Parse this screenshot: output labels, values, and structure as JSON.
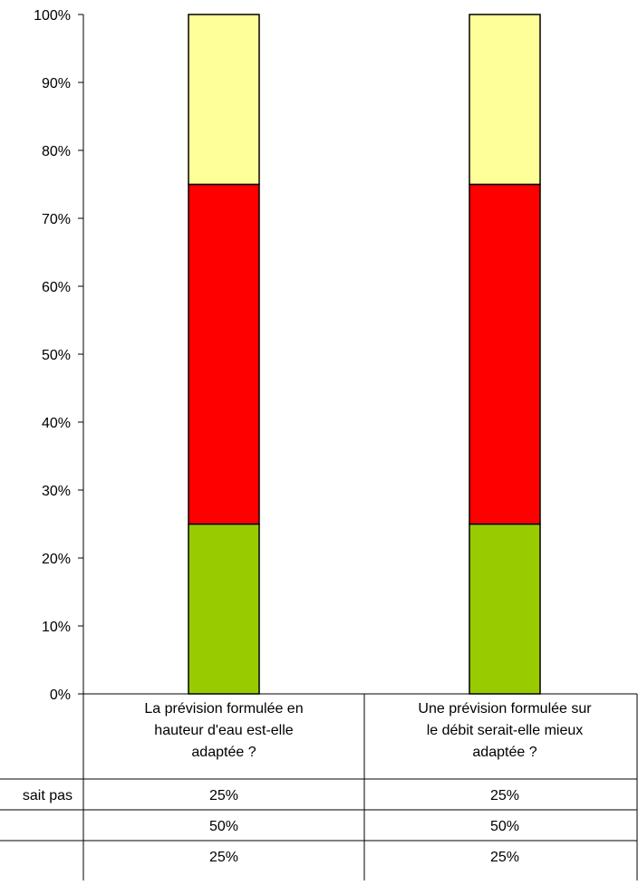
{
  "chart_data": {
    "type": "bar",
    "stacked": true,
    "percent_stacked": true,
    "categories": [
      [
        "La prévision formulée en",
        "hauteur d'eau est-elle",
        "adaptée ?"
      ],
      [
        "Une prévision formulée sur",
        "le débit serait-elle mieux",
        "adaptée ?"
      ]
    ],
    "series": [
      {
        "label": "sait pas",
        "values": [
          25,
          25
        ],
        "color": "#99cc00",
        "display": [
          "25%",
          "25%"
        ]
      },
      {
        "label": "",
        "values": [
          50,
          50
        ],
        "color": "#ff0000",
        "display": [
          "50%",
          "50%"
        ]
      },
      {
        "label": "",
        "values": [
          25,
          25
        ],
        "color": "#ffff99",
        "display": [
          "25%",
          "25%"
        ]
      }
    ],
    "ylim": [
      0,
      100
    ],
    "yticks": [
      "0%",
      "10%",
      "20%",
      "30%",
      "40%",
      "50%",
      "60%",
      "70%",
      "80%",
      "90%",
      "100%"
    ],
    "grid": false,
    "legend": "data-table"
  }
}
